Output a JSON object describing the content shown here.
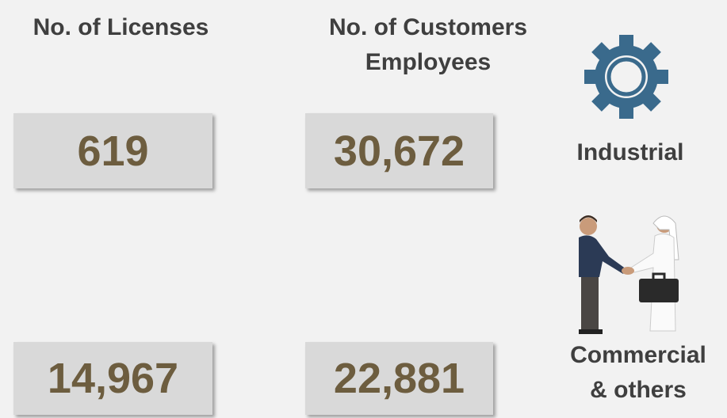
{
  "headers": {
    "licenses": "No. of Licenses",
    "customers": [
      "No. of Customers",
      "Employees"
    ]
  },
  "rows": [
    {
      "sector": [
        "Industrial"
      ],
      "licenses": "619",
      "customers": "30,672"
    },
    {
      "sector": [
        "Commercial",
        "& others"
      ],
      "licenses": "14,967",
      "customers": "22,881"
    }
  ]
}
